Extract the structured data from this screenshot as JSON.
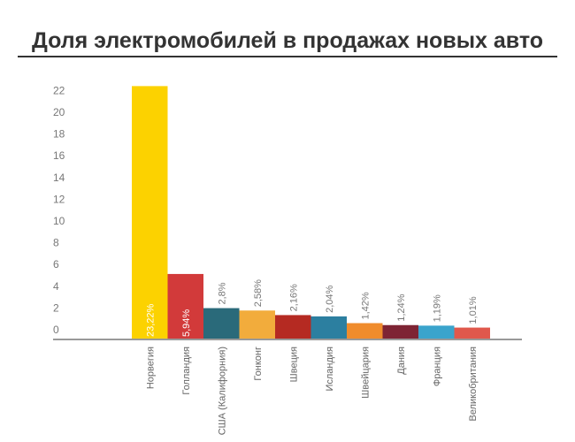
{
  "chart_data": {
    "type": "bar",
    "title": "Доля электромобилей в продажах новых авто",
    "xlabel": "",
    "ylabel": "",
    "ylim": [
      0,
      22
    ],
    "y_ticks": [
      "0",
      "2",
      "4",
      "6",
      "8",
      "10",
      "12",
      "14",
      "16",
      "18",
      "20",
      "22"
    ],
    "grid": false,
    "categories": [
      "Норвегия",
      "Голландия",
      "США (Калифорния)",
      "Гонконг",
      "Швеция",
      "Исландия",
      "Швейцария",
      "Дания",
      "Франция",
      "Великобритания"
    ],
    "values": [
      23.22,
      5.94,
      2.8,
      2.58,
      2.16,
      2.04,
      1.42,
      1.24,
      1.19,
      1.01
    ],
    "data_labels": [
      "23,22%",
      "5,94%",
      "2,8%",
      "2,58%",
      "2,16%",
      "2,04%",
      "1,42%",
      "1,24%",
      "1,19%",
      "1,01%"
    ],
    "colors": [
      "#fcd200",
      "#d23a3a",
      "#2a6a7a",
      "#f2ac3c",
      "#b52a22",
      "#2c7fa0",
      "#f08c2c",
      "#7e2434",
      "#3aa4cc",
      "#e0584c"
    ]
  }
}
